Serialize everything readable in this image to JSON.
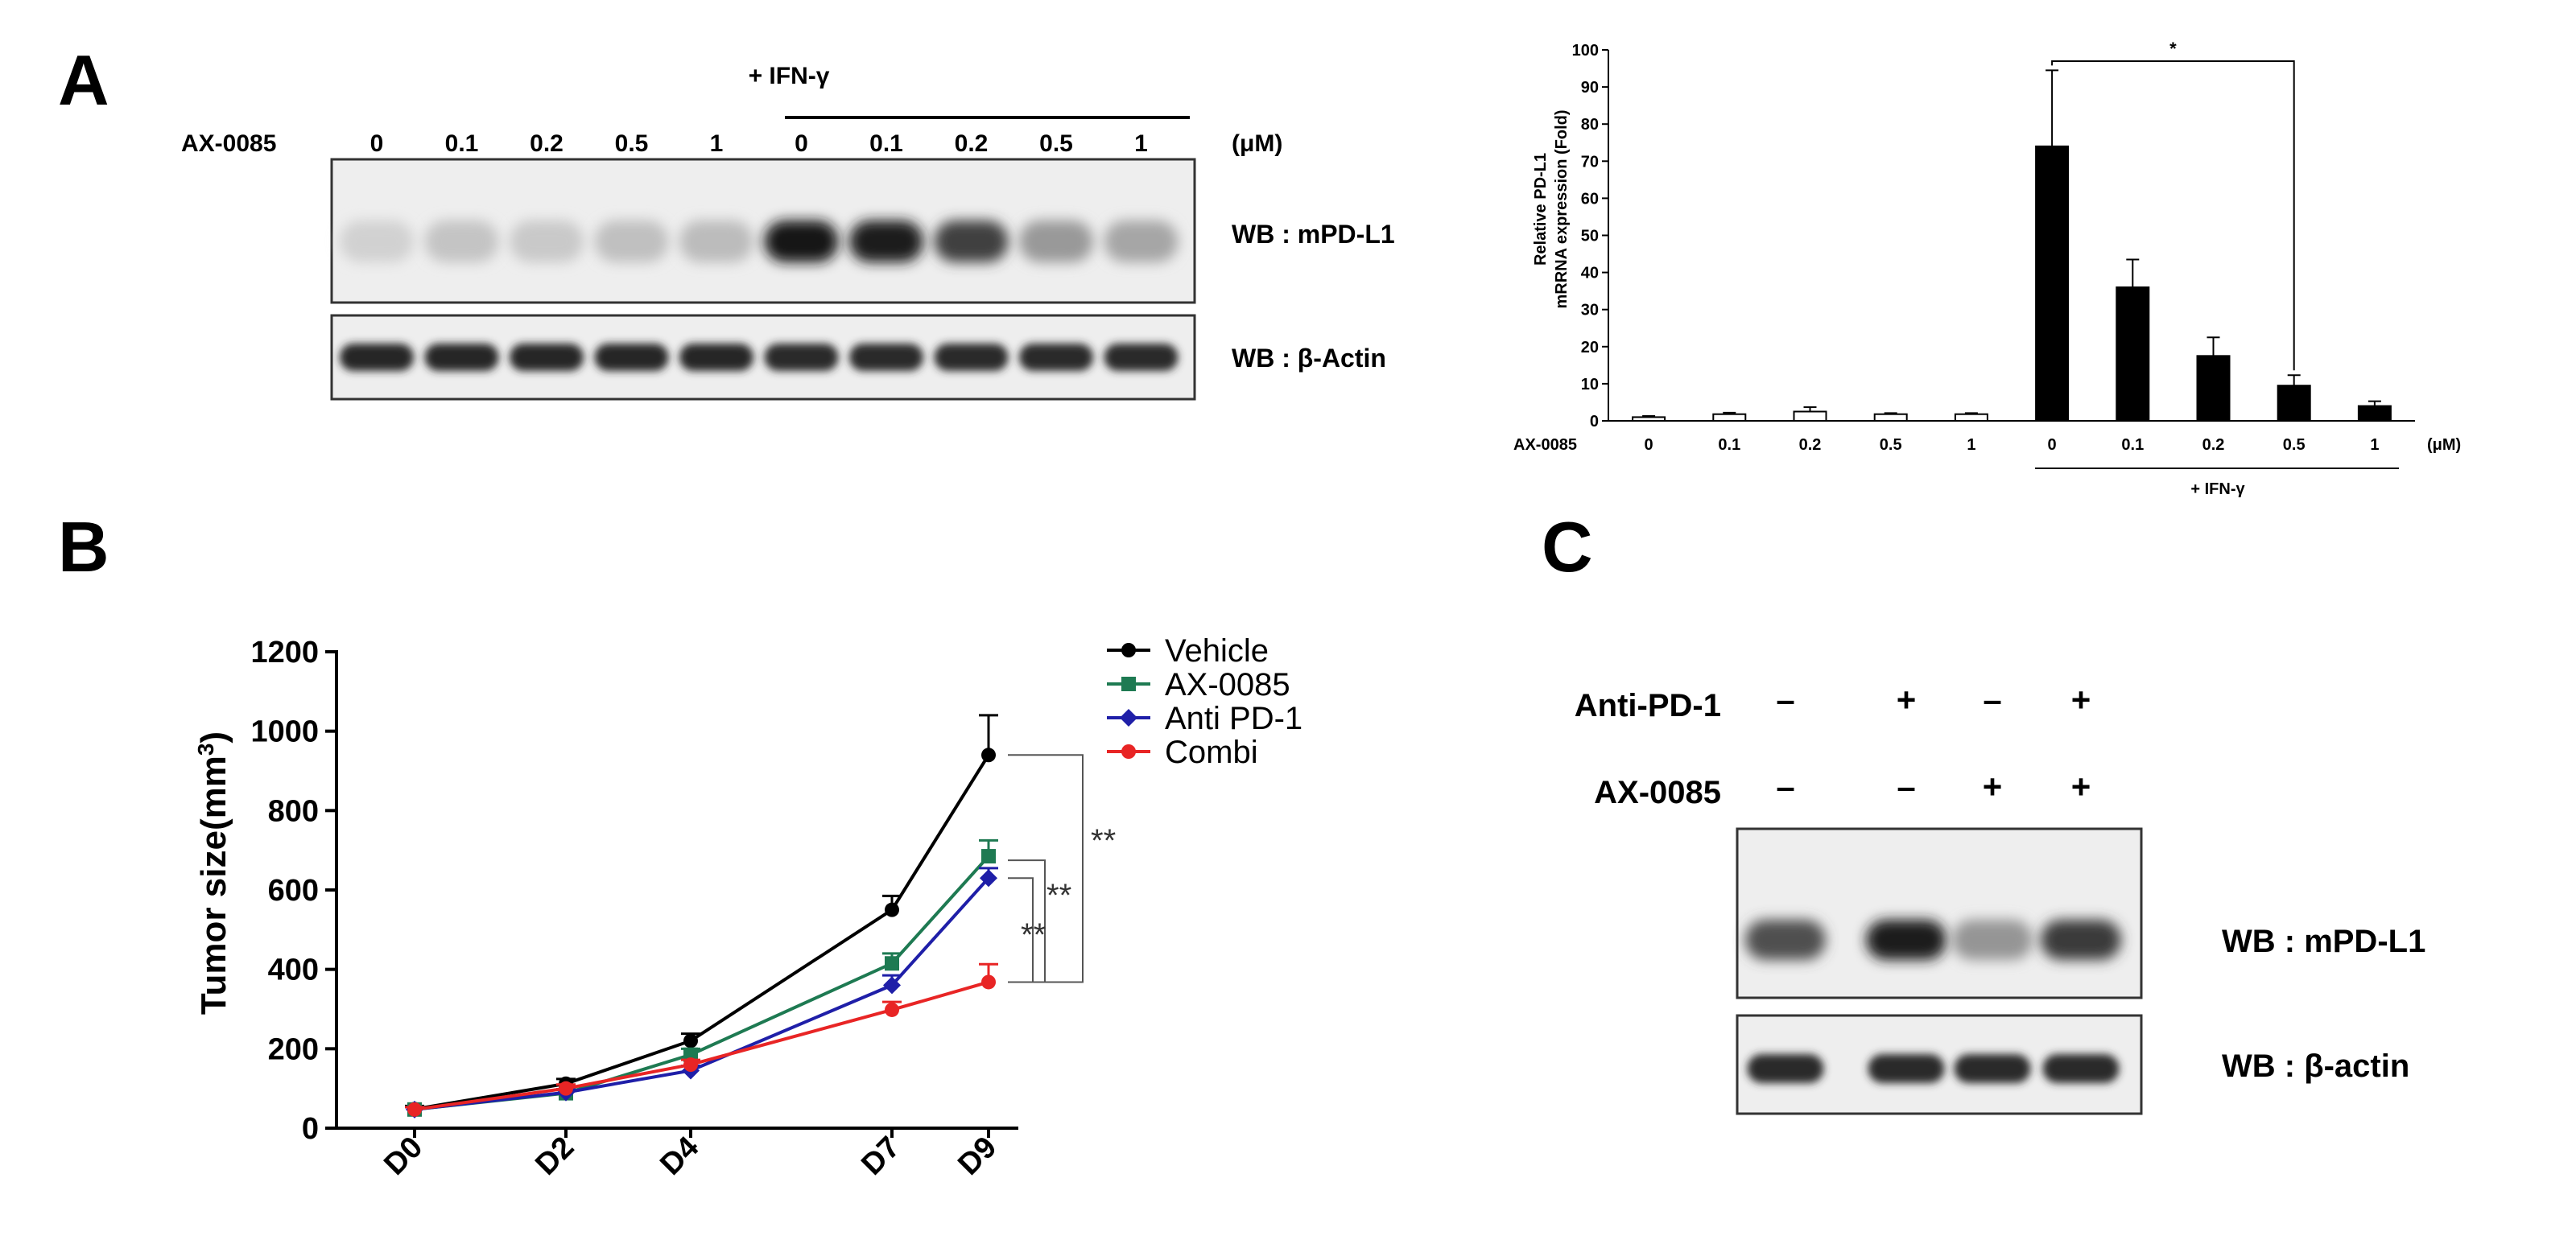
{
  "panels": {
    "A": {
      "letter": "A",
      "blot": {
        "compound_label": "AX-0085",
        "unit_label": "(μM)",
        "ifn_label": "+ IFN-γ",
        "lanes": [
          "0",
          "0.1",
          "0.2",
          "0.5",
          "1",
          "0",
          "0.1",
          "0.2",
          "0.5",
          "1"
        ],
        "rows": [
          {
            "label": "WB : mPD-L1",
            "intensity": [
              0.12,
              0.18,
              0.16,
              0.2,
              0.22,
              0.98,
              0.95,
              0.8,
              0.38,
              0.32
            ]
          },
          {
            "label": "WB : β-Actin",
            "intensity": [
              0.92,
              0.92,
              0.92,
              0.92,
              0.92,
              0.9,
              0.9,
              0.9,
              0.9,
              0.9
            ]
          }
        ]
      }
    },
    "B": {
      "letter": "B"
    },
    "C": {
      "letter": "C",
      "condition_rows": [
        {
          "label": "Anti-PD-1",
          "marks": [
            "–",
            "+",
            "–",
            "+"
          ]
        },
        {
          "label": "AX-0085",
          "marks": [
            "–",
            "–",
            "+",
            "+"
          ]
        }
      ],
      "blot_rows": [
        {
          "label": "WB : mPD-L1",
          "intensity": [
            0.72,
            0.95,
            0.4,
            0.82
          ]
        },
        {
          "label": "WB : β-actin",
          "intensity": [
            0.9,
            0.9,
            0.9,
            0.9
          ]
        }
      ]
    }
  },
  "chart_data": [
    {
      "panel": "A",
      "type": "bar",
      "ylabel_lines": [
        "Relative PD-L1",
        "mRRNA expression (Fold)"
      ],
      "ylim": [
        0,
        100
      ],
      "yticks": [
        0,
        10,
        20,
        30,
        40,
        50,
        60,
        70,
        80,
        90,
        100
      ],
      "row_label": "AX-0085",
      "unit": "(μM)",
      "group_label": "+ IFN-γ",
      "categories": [
        "0",
        "0.1",
        "0.2",
        "0.5",
        "1",
        "0",
        "0.1",
        "0.2",
        "0.5",
        "1"
      ],
      "values": [
        1,
        1.8,
        2.5,
        1.8,
        1.8,
        74,
        36,
        17.5,
        9.5,
        4
      ],
      "errors": [
        0.3,
        0.4,
        1.2,
        0.3,
        0.3,
        20.5,
        7.5,
        5,
        2.8,
        1.3
      ],
      "bar_colors": [
        "#ffffff",
        "#ffffff",
        "#ffffff",
        "#ffffff",
        "#ffffff",
        "#000000",
        "#000000",
        "#000000",
        "#000000",
        "#000000"
      ],
      "significance": {
        "from_index": 5,
        "to_index": 8,
        "label": "*"
      }
    },
    {
      "panel": "B",
      "type": "line",
      "ylabel": "Tumor size(mm",
      "ylabel_sup": "3",
      "ylabel_end": ")",
      "ylim": [
        0,
        1200
      ],
      "yticks": [
        0,
        200,
        400,
        600,
        800,
        1000,
        1200
      ],
      "categories": [
        "D0",
        "D2",
        "D4",
        "D7",
        "D9"
      ],
      "legend_position": "top-right",
      "series": [
        {
          "name": "Vehicle",
          "color": "#000000",
          "marker": "circle",
          "values": [
            48,
            112,
            220,
            550,
            940
          ],
          "errors": [
            8,
            12,
            18,
            35,
            100
          ]
        },
        {
          "name": "AX-0085",
          "color": "#1e7a52",
          "marker": "square",
          "values": [
            47,
            88,
            185,
            415,
            685
          ],
          "errors": [
            6,
            10,
            15,
            25,
            40
          ]
        },
        {
          "name": "Anti PD-1",
          "color": "#1f1fa8",
          "marker": "diamond",
          "values": [
            47,
            90,
            145,
            360,
            630
          ],
          "errors": [
            6,
            8,
            12,
            25,
            25
          ]
        },
        {
          "name": "Combi",
          "color": "#e82525",
          "marker": "circle",
          "values": [
            47,
            100,
            160,
            298,
            368
          ],
          "errors": [
            6,
            10,
            12,
            20,
            45
          ]
        }
      ],
      "significance": [
        {
          "label": "**",
          "between": [
            "Vehicle",
            "Combi"
          ]
        },
        {
          "label": "**",
          "between": [
            "AX-0085",
            "Combi"
          ]
        },
        {
          "label": "**",
          "between": [
            "Anti PD-1",
            "Combi"
          ]
        }
      ]
    }
  ]
}
